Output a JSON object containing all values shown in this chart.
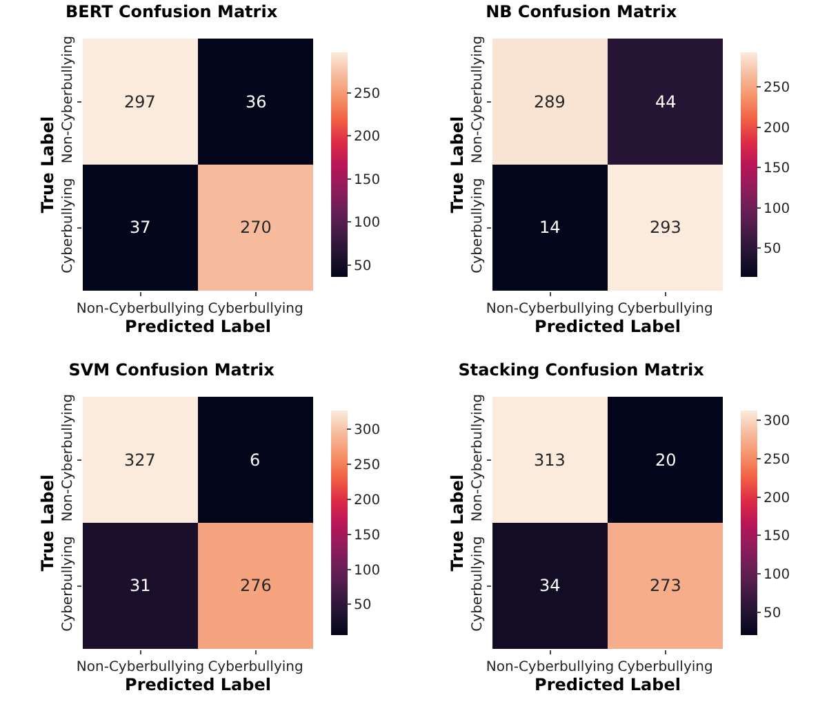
{
  "chart_data": [
    {
      "type": "heatmap",
      "title": "BERT Confusion Matrix",
      "xlabel": "Predicted Label",
      "ylabel": "True Label",
      "categories": [
        "Non-Cyberbullying",
        "Cyberbullying"
      ],
      "y_categories": [
        "Non-Cyberbullying",
        "Cyberbullying"
      ],
      "cells": [
        [
          297,
          36
        ],
        [
          37,
          270
        ]
      ],
      "data_labels": true,
      "clim": [
        36,
        297
      ],
      "cticks": [
        50,
        100,
        150,
        200,
        250
      ]
    },
    {
      "type": "heatmap",
      "title": "NB Confusion Matrix",
      "xlabel": "Predicted Label",
      "ylabel": "True Label",
      "categories": [
        "Non-Cyberbullying",
        "Cyberbullying"
      ],
      "y_categories": [
        "Non-Cyberbullying",
        "Cyberbullying"
      ],
      "cells": [
        [
          289,
          44
        ],
        [
          14,
          293
        ]
      ],
      "data_labels": true,
      "clim": [
        14,
        293
      ],
      "cticks": [
        50,
        100,
        150,
        200,
        250
      ]
    },
    {
      "type": "heatmap",
      "title": "SVM Confusion Matrix",
      "xlabel": "Predicted Label",
      "ylabel": "True Label",
      "categories": [
        "Non-Cyberbullying",
        "Cyberbullying"
      ],
      "y_categories": [
        "Non-Cyberbullying",
        "Cyberbullying"
      ],
      "cells": [
        [
          327,
          6
        ],
        [
          31,
          276
        ]
      ],
      "data_labels": true,
      "clim": [
        6,
        327
      ],
      "cticks": [
        50,
        100,
        150,
        200,
        250,
        300
      ]
    },
    {
      "type": "heatmap",
      "title": "Stacking Confusion Matrix",
      "xlabel": "Predicted Label",
      "ylabel": "True Label",
      "categories": [
        "Non-Cyberbullying",
        "Cyberbullying"
      ],
      "y_categories": [
        "Non-Cyberbullying",
        "Cyberbullying"
      ],
      "cells": [
        [
          313,
          20
        ],
        [
          34,
          273
        ]
      ],
      "data_labels": true,
      "clim": [
        20,
        313
      ],
      "cticks": [
        50,
        100,
        150,
        200,
        250,
        300
      ]
    }
  ]
}
